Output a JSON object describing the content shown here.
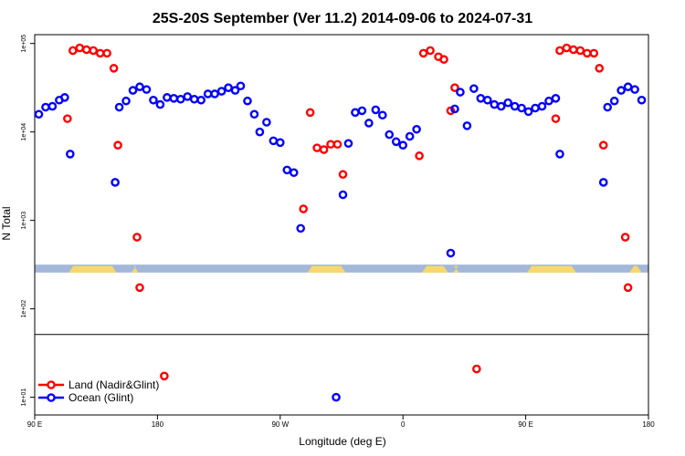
{
  "chart_data": {
    "type": "scatter",
    "title": "25S-20S September (Ver 11.2)   2014-09-06 to 2024-07-31",
    "xlabel": "Longitude (deg E)",
    "ylabel": "N Total",
    "x_range": [
      90,
      540
    ],
    "y_log_range": [
      0.8,
      5.1
    ],
    "x_ticks": [
      {
        "v": 90,
        "label": "90 E"
      },
      {
        "v": 180,
        "label": "180"
      },
      {
        "v": 270,
        "label": "90 W"
      },
      {
        "v": 360,
        "label": "0"
      },
      {
        "v": 450,
        "label": "90 E"
      },
      {
        "v": 540,
        "label": "180"
      }
    ],
    "y_ticks": [
      {
        "v": 1,
        "label": "1e+01"
      },
      {
        "v": 2,
        "label": "1e+02"
      },
      {
        "v": 3,
        "label": "1e+03"
      },
      {
        "v": 4,
        "label": "1e+04"
      },
      {
        "v": 5,
        "label": "1e+05"
      }
    ],
    "divider_log": 1.71,
    "land_strip": {
      "log_low": 2.41,
      "log_high": 2.5
    },
    "land_segments": [
      [
        115,
        150
      ],
      [
        161,
        166
      ],
      [
        290,
        318
      ],
      [
        374,
        393
      ],
      [
        397,
        401
      ],
      [
        451,
        487
      ],
      [
        526,
        535
      ]
    ],
    "legend": [
      {
        "name": "Land (Nadir&Glint)",
        "color": "#ff0000"
      },
      {
        "name": "Ocean (Glint)",
        "color": "#0000ff"
      }
    ],
    "series": [
      {
        "name": "Land (Nadir&Glint)",
        "color": "#ff0000",
        "points": [
          [
            114,
            4.15
          ],
          [
            118,
            4.92
          ],
          [
            123,
            4.95
          ],
          [
            128,
            4.93
          ],
          [
            133,
            4.92
          ],
          [
            138,
            4.89
          ],
          [
            143,
            4.89
          ],
          [
            148,
            4.72
          ],
          [
            151,
            3.85
          ],
          [
            165,
            2.81
          ],
          [
            167,
            2.24
          ],
          [
            185,
            1.24
          ],
          [
            287,
            3.13
          ],
          [
            292,
            4.22
          ],
          [
            297,
            3.82
          ],
          [
            302,
            3.8
          ],
          [
            307,
            3.86
          ],
          [
            312,
            3.86
          ],
          [
            316,
            3.52
          ],
          [
            372,
            3.73
          ],
          [
            375,
            4.89
          ],
          [
            380,
            4.92
          ],
          [
            386,
            4.85
          ],
          [
            390,
            4.82
          ],
          [
            395,
            4.24
          ],
          [
            398,
            4.5
          ],
          [
            414,
            1.32
          ],
          [
            472,
            4.15
          ],
          [
            475,
            4.92
          ],
          [
            480,
            4.95
          ],
          [
            485,
            4.93
          ],
          [
            490,
            4.92
          ],
          [
            495,
            4.89
          ],
          [
            500,
            4.89
          ],
          [
            504,
            4.72
          ],
          [
            507,
            3.85
          ],
          [
            523,
            2.81
          ],
          [
            525,
            2.24
          ]
        ]
      },
      {
        "name": "Ocean (Glint)",
        "color": "#0000ff",
        "points": [
          [
            93,
            4.2
          ],
          [
            98,
            4.28
          ],
          [
            103,
            4.29
          ],
          [
            108,
            4.36
          ],
          [
            112,
            4.39
          ],
          [
            116,
            3.75
          ],
          [
            149,
            3.43
          ],
          [
            152,
            4.28
          ],
          [
            157,
            4.35
          ],
          [
            162,
            4.47
          ],
          [
            167,
            4.51
          ],
          [
            172,
            4.48
          ],
          [
            177,
            4.36
          ],
          [
            182,
            4.31
          ],
          [
            187,
            4.39
          ],
          [
            192,
            4.38
          ],
          [
            197,
            4.37
          ],
          [
            202,
            4.4
          ],
          [
            207,
            4.37
          ],
          [
            212,
            4.36
          ],
          [
            217,
            4.43
          ],
          [
            222,
            4.43
          ],
          [
            227,
            4.46
          ],
          [
            232,
            4.5
          ],
          [
            237,
            4.47
          ],
          [
            241,
            4.52
          ],
          [
            246,
            4.35
          ],
          [
            251,
            4.2
          ],
          [
            255,
            4.0
          ],
          [
            260,
            4.11
          ],
          [
            265,
            3.9
          ],
          [
            270,
            3.88
          ],
          [
            275,
            3.57
          ],
          [
            280,
            3.54
          ],
          [
            285,
            2.91
          ],
          [
            311,
            1.0
          ],
          [
            316,
            3.29
          ],
          [
            320,
            3.87
          ],
          [
            325,
            4.22
          ],
          [
            330,
            4.24
          ],
          [
            335,
            4.1
          ],
          [
            340,
            4.25
          ],
          [
            345,
            4.19
          ],
          [
            350,
            3.97
          ],
          [
            355,
            3.89
          ],
          [
            360,
            3.85
          ],
          [
            365,
            3.95
          ],
          [
            370,
            4.03
          ],
          [
            395,
            2.63
          ],
          [
            398,
            4.26
          ],
          [
            402,
            4.45
          ],
          [
            407,
            4.07
          ],
          [
            412,
            4.49
          ],
          [
            417,
            4.38
          ],
          [
            422,
            4.36
          ],
          [
            427,
            4.31
          ],
          [
            432,
            4.29
          ],
          [
            437,
            4.33
          ],
          [
            442,
            4.29
          ],
          [
            447,
            4.27
          ],
          [
            452,
            4.23
          ],
          [
            457,
            4.27
          ],
          [
            462,
            4.29
          ],
          [
            467,
            4.35
          ],
          [
            472,
            4.38
          ],
          [
            475,
            3.75
          ],
          [
            507,
            3.43
          ],
          [
            510,
            4.28
          ],
          [
            515,
            4.35
          ],
          [
            520,
            4.47
          ],
          [
            525,
            4.51
          ],
          [
            530,
            4.48
          ],
          [
            535,
            4.36
          ]
        ]
      }
    ]
  }
}
